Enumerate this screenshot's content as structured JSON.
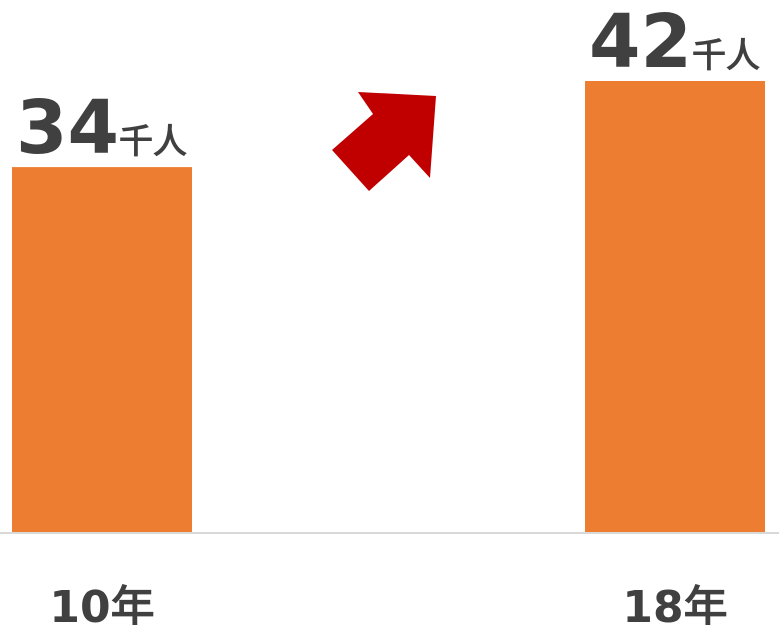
{
  "chart_data": {
    "type": "bar",
    "categories": [
      "10年",
      "18年"
    ],
    "values": [
      34,
      42
    ],
    "value_labels": [
      "34",
      "42"
    ],
    "value_unit": "千人",
    "ylim": [
      0,
      42
    ],
    "grid": false,
    "colors": {
      "bar": "#ED7D31",
      "arrow": "#C00000",
      "text": "#404040",
      "axis": "#D9D9D9"
    },
    "annotation": "up-arrow-icon"
  }
}
